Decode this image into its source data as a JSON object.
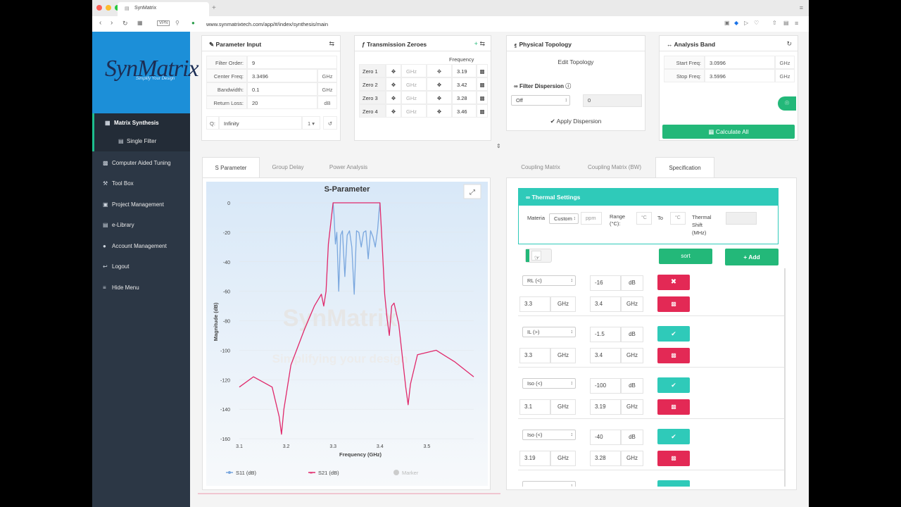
{
  "browser": {
    "tab_title": "SynMatrix",
    "url": "www.synmatrixtech.com/app/#/index/synthesis/main",
    "vpn": "VPN"
  },
  "sidebar": {
    "logo": "SynMatrix",
    "logo_sub": "Simplify Your Design",
    "items": [
      {
        "label": "Matrix Synthesis",
        "icon": "calculator-icon"
      },
      {
        "label": "Single Filter",
        "icon": "file-icon"
      },
      {
        "label": "Computer Aided Tuning",
        "icon": "monitor-icon"
      },
      {
        "label": "Tool Box",
        "icon": "wrench-icon"
      },
      {
        "label": "Project Management",
        "icon": "briefcase-icon"
      },
      {
        "label": "e-Library",
        "icon": "book-icon"
      },
      {
        "label": "Account Management",
        "icon": "users-icon"
      },
      {
        "label": "Logout",
        "icon": "logout-icon"
      },
      {
        "label": "Hide Menu",
        "icon": "menu-icon"
      }
    ]
  },
  "param": {
    "title": "Parameter Input",
    "rows": [
      {
        "label": "Filter Order:",
        "value": "9",
        "unit": ""
      },
      {
        "label": "Center Freq:",
        "value": "3.3496",
        "unit": "GHz"
      },
      {
        "label": "Bandwidth:",
        "value": "0.1",
        "unit": "GHz"
      },
      {
        "label": "Return Loss:",
        "value": "20",
        "unit": "dB"
      }
    ],
    "q_label": "Q:",
    "q_value": "Infinity",
    "q_select": "1"
  },
  "zeroes": {
    "title": "Transmission Zeroes",
    "freq_header": "Frequency",
    "rows": [
      {
        "label": "Zero 1",
        "unit": "GHz",
        "freq": "3.19"
      },
      {
        "label": "Zero 2",
        "unit": "GHz",
        "freq": "3.42"
      },
      {
        "label": "Zero 3",
        "unit": "GHz",
        "freq": "3.28"
      },
      {
        "label": "Zero 4",
        "unit": "GHz",
        "freq": "3.46"
      }
    ]
  },
  "topology": {
    "title": "Physical Topology",
    "edit": "Edit Topology",
    "dispersion": "Filter Dispersion",
    "dispersion_select": "Off",
    "dispersion_value": "0",
    "apply": "Apply Dispersion"
  },
  "band": {
    "title": "Analysis Band",
    "start_label": "Start Freq:",
    "start": "3.0996",
    "stop_label": "Stop Freq:",
    "stop": "3.5996",
    "unit": "GHz",
    "calc": "Calculate All"
  },
  "left_tabs": [
    "S Parameter",
    "Group Delay",
    "Power Analysis"
  ],
  "right_tabs": [
    "Coupling Matrix",
    "Coupling Matrix (BW)",
    "Specification"
  ],
  "thermal": {
    "title": "Thermal Settings",
    "material_label": "Materia",
    "material": "Custom",
    "ppm": "ppm",
    "range_label": "Range (°C):",
    "deg1": "°C",
    "to": "To",
    "deg2": "°C",
    "shift_label": "Thermal Shift (MHz)"
  },
  "spec_buttons": {
    "sort": "sort",
    "add": "+ Add"
  },
  "specs": [
    {
      "type": "RL (<)",
      "value": "-16",
      "unit": "dB",
      "f1": "3.3",
      "f2": "3.4",
      "ok": "false"
    },
    {
      "type": "IL (>)",
      "value": "-1.5",
      "unit": "dB",
      "f1": "3.3",
      "f2": "3.4",
      "ok": "true"
    },
    {
      "type": "Iso (<)",
      "value": "-100",
      "unit": "dB",
      "f1": "3.1",
      "f2": "3.19",
      "ok": "true"
    },
    {
      "type": "Iso (<)",
      "value": "-40",
      "unit": "dB",
      "f1": "3.19",
      "f2": "3.28",
      "ok": "true"
    }
  ],
  "ghz": "GHz",
  "chart_data": {
    "type": "line",
    "title": "S-Parameter",
    "xlabel": "Frequency (GHz)",
    "ylabel": "Magnitude (dB)",
    "xlim": [
      3.1,
      3.6
    ],
    "ylim": [
      -160,
      0
    ],
    "xticks": [
      "3.1",
      "3.2",
      "3.3",
      "3.4",
      "3.5"
    ],
    "yticks": [
      "0",
      "-20",
      "-40",
      "-60",
      "-80",
      "-100",
      "-120",
      "-140",
      "-160"
    ],
    "watermark": "SynMatrix",
    "watermark_sub": "Simplifying your design",
    "legend": [
      "S11 (dB)",
      "S21 (dB)",
      "Marker"
    ],
    "colors": {
      "s11": "#7aa7de",
      "s21": "#e0286a"
    },
    "series": [
      {
        "name": "S11 (dB)",
        "x": [
          3.3,
          3.302,
          3.305,
          3.308,
          3.312,
          3.316,
          3.32,
          3.325,
          3.33,
          3.335,
          3.34,
          3.345,
          3.35,
          3.355,
          3.36,
          3.365,
          3.37,
          3.375,
          3.38,
          3.385,
          3.39,
          3.395,
          3.398,
          3.4
        ],
        "y": [
          0,
          -8,
          -28,
          -20,
          -60,
          -22,
          -19,
          -50,
          -22,
          -19,
          -30,
          -62,
          -19,
          -20,
          -30,
          -20,
          -19,
          -38,
          -19,
          -23,
          -30,
          -18,
          -6,
          0
        ]
      },
      {
        "name": "S21 (dB)",
        "x": [
          3.1,
          3.13,
          3.17,
          3.185,
          3.19,
          3.195,
          3.21,
          3.24,
          3.26,
          3.275,
          3.28,
          3.285,
          3.29,
          3.3,
          3.4,
          3.405,
          3.41,
          3.415,
          3.42,
          3.425,
          3.43,
          3.44,
          3.455,
          3.46,
          3.465,
          3.48,
          3.52,
          3.56,
          3.6
        ],
        "y": [
          -125,
          -118,
          -125,
          -145,
          -157,
          -140,
          -110,
          -85,
          -70,
          -62,
          -70,
          -60,
          -28,
          0,
          0,
          -30,
          -62,
          -78,
          -90,
          -70,
          -68,
          -82,
          -125,
          -137,
          -123,
          -103,
          -100,
          -108,
          -118
        ]
      }
    ]
  }
}
